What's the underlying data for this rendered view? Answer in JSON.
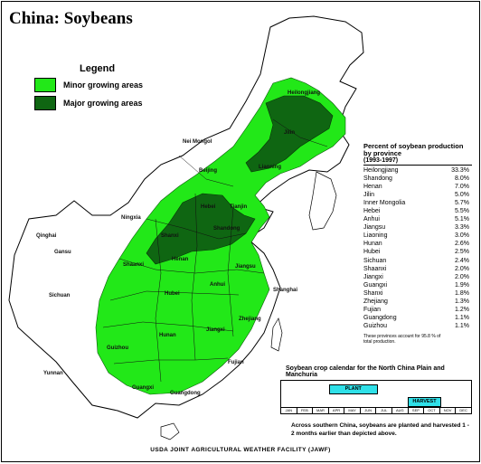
{
  "title": "China:  Soybeans",
  "legend": {
    "title": "Legend",
    "items": [
      {
        "label": "Minor growing areas",
        "color": "#22e818"
      },
      {
        "label": "Major growing areas",
        "color": "#0f6612"
      }
    ]
  },
  "provinces": [
    {
      "key": "heilongjiang",
      "label": "Heilongjiang"
    },
    {
      "key": "jilin",
      "label": "Jilin"
    },
    {
      "key": "liaoning",
      "label": "Liaoning"
    },
    {
      "key": "nei_mongol",
      "label": "Nei Mongol"
    },
    {
      "key": "beijing",
      "label": "Beijing"
    },
    {
      "key": "tianjin",
      "label": "Tianjin"
    },
    {
      "key": "hebei",
      "label": "Hebei"
    },
    {
      "key": "ningxia",
      "label": "Ningxia"
    },
    {
      "key": "shanxi",
      "label": "Shanxi"
    },
    {
      "key": "shandong",
      "label": "Shandong"
    },
    {
      "key": "qinghai",
      "label": "Qinghai"
    },
    {
      "key": "gansu",
      "label": "Gansu"
    },
    {
      "key": "shaanxi",
      "label": "Shaanxi"
    },
    {
      "key": "henan",
      "label": "Henan"
    },
    {
      "key": "jiangsu",
      "label": "Jiangsu"
    },
    {
      "key": "shanghai",
      "label": "Shanghai"
    },
    {
      "key": "sichuan",
      "label": "Sichuan"
    },
    {
      "key": "hubei",
      "label": "Hubei"
    },
    {
      "key": "anhui",
      "label": "Anhui"
    },
    {
      "key": "zhejiang",
      "label": "Zhejiang"
    },
    {
      "key": "hunan",
      "label": "Hunan"
    },
    {
      "key": "jiangxi",
      "label": "Jiangxi"
    },
    {
      "key": "guizhou",
      "label": "Guizhou"
    },
    {
      "key": "yunnan",
      "label": "Yunnan"
    },
    {
      "key": "fujian",
      "label": "Fujian"
    },
    {
      "key": "guangxi",
      "label": "Guangxi"
    },
    {
      "key": "guangdong",
      "label": "Guangdong"
    }
  ],
  "production_table": {
    "title": "Percent of soybean production by province",
    "period": "(1993-1997)",
    "rows": [
      {
        "province": "Heilongjiang",
        "percent": "33.3%"
      },
      {
        "province": "Shandong",
        "percent": "8.0%"
      },
      {
        "province": "Henan",
        "percent": "7.0%"
      },
      {
        "province": "Jilin",
        "percent": "5.0%"
      },
      {
        "province": "Inner Mongolia",
        "percent": "5.7%"
      },
      {
        "province": "Hebei",
        "percent": "5.5%"
      },
      {
        "province": "Anhui",
        "percent": "5.1%"
      },
      {
        "province": "Jiangsu",
        "percent": "3.3%"
      },
      {
        "province": "Liaoning",
        "percent": "3.0%"
      },
      {
        "province": "Hunan",
        "percent": "2.6%"
      },
      {
        "province": "Hubei",
        "percent": "2.5%"
      },
      {
        "province": "Sichuan",
        "percent": "2.4%"
      },
      {
        "province": "Shaanxi",
        "percent": "2.0%"
      },
      {
        "province": "Jiangxi",
        "percent": "2.0%"
      },
      {
        "province": "Guangxi",
        "percent": "1.9%"
      },
      {
        "province": "Shanxi",
        "percent": "1.8%"
      },
      {
        "province": "Zhejiang",
        "percent": "1.3%"
      },
      {
        "province": "Fujian",
        "percent": "1.2%"
      },
      {
        "province": "Guangdong",
        "percent": "1.1%"
      },
      {
        "province": "Guizhou",
        "percent": "1.1%"
      }
    ],
    "footnote": "These provinces account for 95.8 % of total production."
  },
  "crop_calendar": {
    "title": "Soybean crop calendar for the North China Plain and Manchuria",
    "months": [
      "JAN",
      "FEB",
      "MAR",
      "APR",
      "MAY",
      "JUN",
      "JUL",
      "AUG",
      "SEP",
      "OCT",
      "NOV",
      "DEC"
    ],
    "plant": {
      "label": "PLANT",
      "start_month": 4,
      "end_month": 7
    },
    "harvest": {
      "label": "HARVEST",
      "start_month": 9,
      "end_month": 11
    },
    "bar_color": "#2fe0e8",
    "note": "Across southern China, soybeans are planted and harvested 1 - 2 months earlier than depicted above."
  },
  "footer": "USDA JOINT AGRICULTURAL WEATHER FACILITY (JAWF)"
}
